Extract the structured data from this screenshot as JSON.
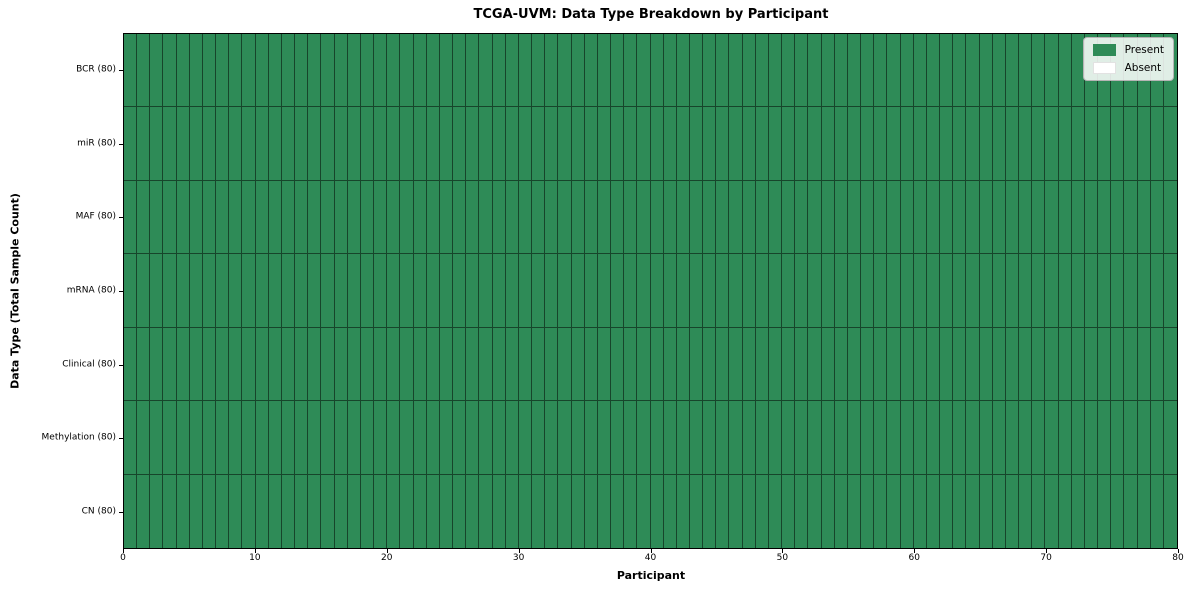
{
  "chart_data": {
    "type": "heatmap",
    "title": "TCGA-UVM: Data Type Breakdown by Participant",
    "xlabel": "Participant",
    "ylabel": "Data Type (Total Sample Count)",
    "x_range": [
      0,
      80
    ],
    "x_ticks": [
      0,
      10,
      20,
      30,
      40,
      50,
      60,
      70,
      80
    ],
    "n_participants": 80,
    "rows": [
      {
        "label": "BCR (80)",
        "name": "BCR",
        "present_count": 80,
        "absent_count": 0
      },
      {
        "label": "miR (80)",
        "name": "miR",
        "present_count": 80,
        "absent_count": 0
      },
      {
        "label": "MAF (80)",
        "name": "MAF",
        "present_count": 80,
        "absent_count": 0
      },
      {
        "label": "mRNA (80)",
        "name": "mRNA",
        "present_count": 80,
        "absent_count": 0
      },
      {
        "label": "Clinical (80)",
        "name": "Clinical",
        "present_count": 80,
        "absent_count": 0
      },
      {
        "label": "Methylation (80)",
        "name": "Methylation",
        "present_count": 80,
        "absent_count": 0
      },
      {
        "label": "CN (80)",
        "name": "CN",
        "present_count": 80,
        "absent_count": 0
      }
    ],
    "legend": {
      "position": "upper-right",
      "entries": [
        {
          "label": "Present",
          "color": "#2e8b57"
        },
        {
          "label": "Absent",
          "color": "#ffffff"
        }
      ]
    },
    "colors": {
      "present": "#2e8b57",
      "absent": "#ffffff",
      "cell_edge": "rgba(0,0,0,0.50)",
      "spine": "#000000"
    }
  }
}
